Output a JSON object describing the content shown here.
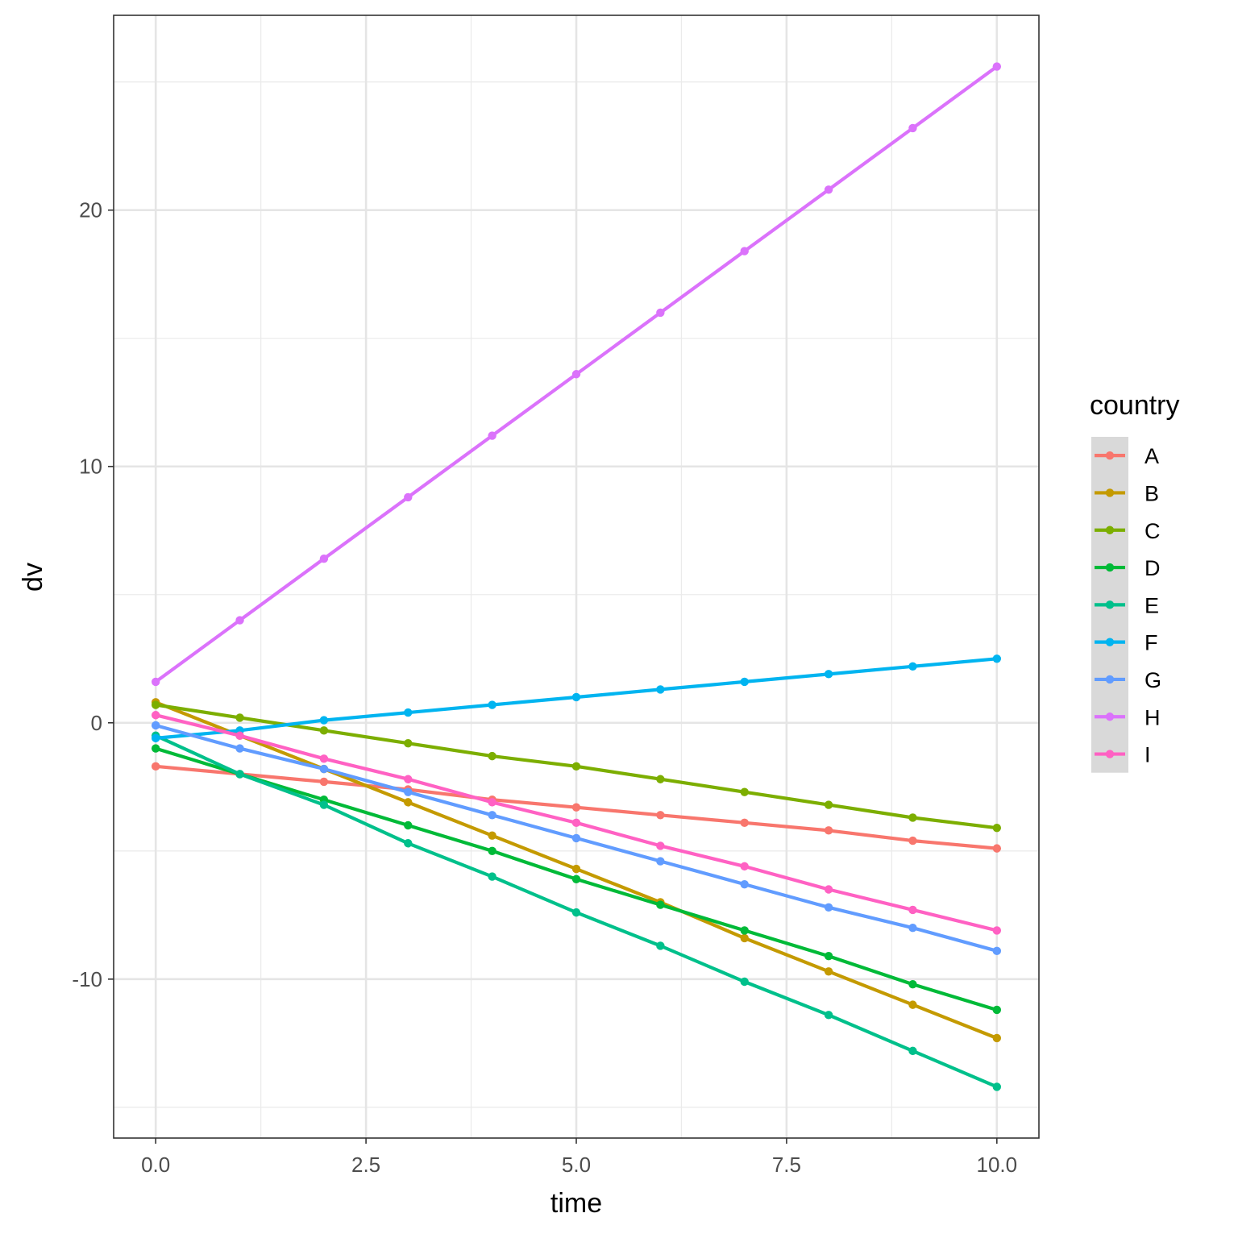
{
  "chart_data": {
    "type": "line",
    "xlabel": "time",
    "ylabel": "dv",
    "xlim": [
      -0.5,
      10.5
    ],
    "ylim": [
      -16.2,
      27.6
    ],
    "x_ticks": [
      0,
      2.5,
      5,
      7.5,
      10
    ],
    "x_tick_labels": [
      "0.0",
      "2.5",
      "5.0",
      "7.5",
      "10.0"
    ],
    "y_ticks": [
      -10,
      0,
      10,
      20
    ],
    "y_tick_labels": [
      "-10",
      "0",
      "10",
      "20"
    ],
    "grid": true,
    "legend": {
      "title": "country",
      "position": "right"
    },
    "x": [
      0,
      1,
      2,
      3,
      4,
      5,
      6,
      7,
      8,
      9,
      10
    ],
    "series": [
      {
        "name": "A",
        "color": "#F8766D",
        "values": [
          -1.7,
          -2.0,
          -2.3,
          -2.6,
          -3.0,
          -3.3,
          -3.6,
          -3.9,
          -4.2,
          -4.6,
          -4.9
        ]
      },
      {
        "name": "B",
        "color": "#C49A00",
        "values": [
          0.8,
          -0.5,
          -1.8,
          -3.1,
          -4.4,
          -5.7,
          -7.0,
          -8.4,
          -9.7,
          -11.0,
          -12.3
        ]
      },
      {
        "name": "C",
        "color": "#7CAE00",
        "values": [
          0.7,
          0.2,
          -0.3,
          -0.8,
          -1.3,
          -1.7,
          -2.2,
          -2.7,
          -3.2,
          -3.7,
          -4.1
        ]
      },
      {
        "name": "D",
        "color": "#00BA38",
        "values": [
          -1.0,
          -2.0,
          -3.0,
          -4.0,
          -5.0,
          -6.1,
          -7.1,
          -8.1,
          -9.1,
          -10.2,
          -11.2
        ]
      },
      {
        "name": "E",
        "color": "#00C08B",
        "values": [
          -0.5,
          -2.0,
          -3.2,
          -4.7,
          -6.0,
          -7.4,
          -8.7,
          -10.1,
          -11.4,
          -12.8,
          -14.2
        ]
      },
      {
        "name": "F",
        "color": "#00B4F0",
        "values": [
          -0.6,
          -0.3,
          0.1,
          0.4,
          0.7,
          1.0,
          1.3,
          1.6,
          1.9,
          2.2,
          2.5
        ]
      },
      {
        "name": "G",
        "color": "#619CFF",
        "values": [
          -0.1,
          -1.0,
          -1.8,
          -2.7,
          -3.6,
          -4.5,
          -5.4,
          -6.3,
          -7.2,
          -8.0,
          -8.9
        ]
      },
      {
        "name": "H",
        "color": "#DB72FB",
        "values": [
          1.6,
          4.0,
          6.4,
          8.8,
          11.2,
          13.6,
          16.0,
          18.4,
          20.8,
          23.2,
          25.6
        ]
      },
      {
        "name": "I",
        "color": "#FF61C3",
        "values": [
          0.3,
          -0.5,
          -1.4,
          -2.2,
          -3.1,
          -3.9,
          -4.8,
          -5.6,
          -6.5,
          -7.3,
          -8.1
        ]
      }
    ]
  }
}
